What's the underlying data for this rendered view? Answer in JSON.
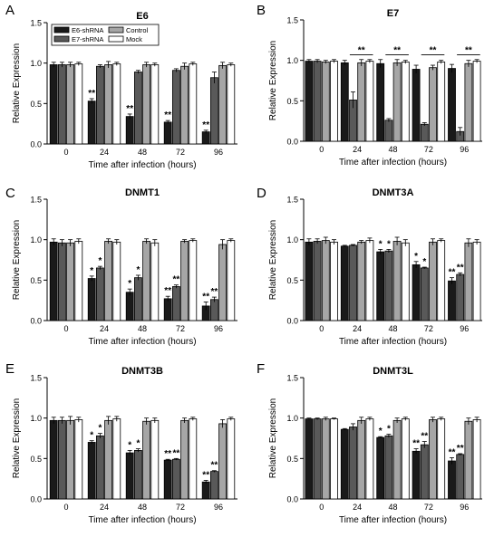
{
  "legend": {
    "entries": [
      {
        "name": "E6-shRNA",
        "color": "#1a1a1a"
      },
      {
        "name": "Control",
        "color": "#a6a6a6"
      },
      {
        "name": "E7-shRNA",
        "color": "#595959"
      },
      {
        "name": "Mock",
        "color": "#ffffff"
      }
    ]
  },
  "chart_data": [
    {
      "type": "bar",
      "panel": "A",
      "title": "E6",
      "xlabel": "Time after infection (hours)",
      "ylabel": "Relative Expression",
      "ylim": [
        0,
        1.5
      ],
      "yticks": [
        "0.0",
        "0.5",
        "1.0",
        "1.5"
      ],
      "categories": [
        "0",
        "24",
        "48",
        "72",
        "96"
      ],
      "series": [
        {
          "name": "E6-shRNA",
          "values": [
            0.98,
            0.53,
            0.34,
            0.27,
            0.15
          ],
          "errors": [
            0.03,
            0.03,
            0.03,
            0.02,
            0.02
          ]
        },
        {
          "name": "E7-shRNA",
          "values": [
            0.98,
            0.96,
            0.89,
            0.91,
            0.82
          ],
          "errors": [
            0.03,
            0.02,
            0.02,
            0.02,
            0.07
          ]
        },
        {
          "name": "Control",
          "values": [
            0.98,
            0.98,
            0.98,
            0.96,
            0.97
          ],
          "errors": [
            0.03,
            0.04,
            0.03,
            0.04,
            0.04
          ]
        },
        {
          "name": "Mock",
          "values": [
            0.99,
            0.99,
            0.98,
            0.99,
            0.98
          ],
          "errors": [
            0.02,
            0.02,
            0.02,
            0.02,
            0.02
          ]
        }
      ],
      "annotations": [
        {
          "category": 1,
          "series": 0,
          "text": "**"
        },
        {
          "category": 2,
          "series": 0,
          "text": "**"
        },
        {
          "category": 3,
          "series": 0,
          "text": "**"
        },
        {
          "category": 4,
          "series": 0,
          "text": "**"
        }
      ],
      "brackets": []
    },
    {
      "type": "bar",
      "panel": "B",
      "title": "E7",
      "xlabel": "Time after infection (hours)",
      "ylabel": "Relative Expression",
      "ylim": [
        0,
        1.5
      ],
      "yticks": [
        "0.0",
        "0.5",
        "1.0",
        "1.5"
      ],
      "categories": [
        "0",
        "24",
        "48",
        "72",
        "96"
      ],
      "series": [
        {
          "name": "E6-shRNA",
          "values": [
            0.99,
            0.97,
            0.96,
            0.89,
            0.9
          ],
          "errors": [
            0.02,
            0.03,
            0.05,
            0.05,
            0.05
          ]
        },
        {
          "name": "E7-shRNA",
          "values": [
            0.99,
            0.51,
            0.26,
            0.21,
            0.12
          ],
          "errors": [
            0.02,
            0.1,
            0.02,
            0.02,
            0.05
          ]
        },
        {
          "name": "Control",
          "values": [
            0.98,
            0.97,
            0.97,
            0.91,
            0.96
          ],
          "errors": [
            0.02,
            0.04,
            0.04,
            0.03,
            0.04
          ]
        },
        {
          "name": "Mock",
          "values": [
            0.99,
            0.99,
            0.98,
            0.98,
            0.99
          ],
          "errors": [
            0.02,
            0.02,
            0.02,
            0.02,
            0.02
          ]
        }
      ],
      "annotations": [],
      "brackets": [
        {
          "category": 1,
          "from": 1,
          "to": 3,
          "y": 1.07,
          "text": "**"
        },
        {
          "category": 2,
          "from": 1,
          "to": 3,
          "y": 1.07,
          "text": "**"
        },
        {
          "category": 3,
          "from": 1,
          "to": 3,
          "y": 1.07,
          "text": "**"
        },
        {
          "category": 4,
          "from": 1,
          "to": 3,
          "y": 1.07,
          "text": "**"
        }
      ]
    },
    {
      "type": "bar",
      "panel": "C",
      "title": "DNMT1",
      "xlabel": "Time after infection (hours)",
      "ylabel": "Relative Expression",
      "ylim": [
        0,
        1.5
      ],
      "yticks": [
        "0.0",
        "0.5",
        "1.0",
        "1.5"
      ],
      "categories": [
        "0",
        "24",
        "48",
        "72",
        "96"
      ],
      "series": [
        {
          "name": "E6-shRNA",
          "values": [
            0.97,
            0.52,
            0.35,
            0.27,
            0.18
          ],
          "errors": [
            0.04,
            0.03,
            0.04,
            0.03,
            0.05
          ]
        },
        {
          "name": "E7-shRNA",
          "values": [
            0.96,
            0.65,
            0.53,
            0.42,
            0.26
          ],
          "errors": [
            0.04,
            0.02,
            0.03,
            0.02,
            0.03
          ]
        },
        {
          "name": "Control",
          "values": [
            0.96,
            0.98,
            0.98,
            0.98,
            0.94
          ],
          "errors": [
            0.04,
            0.03,
            0.03,
            0.02,
            0.06
          ]
        },
        {
          "name": "Mock",
          "values": [
            0.98,
            0.97,
            0.96,
            0.99,
            0.99
          ],
          "errors": [
            0.03,
            0.03,
            0.04,
            0.02,
            0.02
          ]
        }
      ],
      "annotations": [
        {
          "category": 1,
          "series": 0,
          "text": "*"
        },
        {
          "category": 1,
          "series": 1,
          "text": "*"
        },
        {
          "category": 2,
          "series": 0,
          "text": "*"
        },
        {
          "category": 2,
          "series": 1,
          "text": "*"
        },
        {
          "category": 3,
          "series": 0,
          "text": "**"
        },
        {
          "category": 3,
          "series": 1,
          "text": "**"
        },
        {
          "category": 4,
          "series": 0,
          "text": "**"
        },
        {
          "category": 4,
          "series": 1,
          "text": "**"
        }
      ],
      "brackets": []
    },
    {
      "type": "bar",
      "panel": "D",
      "title": "DNMT3A",
      "xlabel": "Time after infection (hours)",
      "ylabel": "Relative Expression",
      "ylim": [
        0,
        1.5
      ],
      "yticks": [
        "0.0",
        "0.5",
        "1.0",
        "1.5"
      ],
      "categories": [
        "0",
        "24",
        "48",
        "72",
        "96"
      ],
      "series": [
        {
          "name": "E6-shRNA",
          "values": [
            0.97,
            0.92,
            0.85,
            0.69,
            0.49
          ],
          "errors": [
            0.04,
            0.01,
            0.03,
            0.04,
            0.04
          ]
        },
        {
          "name": "E7-shRNA",
          "values": [
            0.98,
            0.93,
            0.86,
            0.65,
            0.57
          ],
          "errors": [
            0.03,
            0.01,
            0.02,
            0.01,
            0.02
          ]
        },
        {
          "name": "Control",
          "values": [
            0.99,
            0.97,
            0.98,
            0.97,
            0.96
          ],
          "errors": [
            0.04,
            0.02,
            0.05,
            0.04,
            0.05
          ]
        },
        {
          "name": "Mock",
          "values": [
            0.97,
            0.99,
            0.96,
            0.99,
            0.97
          ],
          "errors": [
            0.03,
            0.03,
            0.04,
            0.02,
            0.03
          ]
        }
      ],
      "annotations": [
        {
          "category": 2,
          "series": 0,
          "text": "*"
        },
        {
          "category": 2,
          "series": 1,
          "text": "*"
        },
        {
          "category": 3,
          "series": 0,
          "text": "*"
        },
        {
          "category": 3,
          "series": 1,
          "text": "*"
        },
        {
          "category": 4,
          "series": 0,
          "text": "**"
        },
        {
          "category": 4,
          "series": 1,
          "text": "**"
        }
      ],
      "brackets": []
    },
    {
      "type": "bar",
      "panel": "E",
      "title": "DNMT3B",
      "xlabel": "Time after infection (hours)",
      "ylabel": "Relative Expression",
      "ylim": [
        0,
        1.5
      ],
      "yticks": [
        "0.0",
        "0.5",
        "1.0",
        "1.5"
      ],
      "categories": [
        "0",
        "24",
        "48",
        "72",
        "96"
      ],
      "series": [
        {
          "name": "E6-shRNA",
          "values": [
            0.97,
            0.7,
            0.57,
            0.48,
            0.21
          ],
          "errors": [
            0.04,
            0.02,
            0.03,
            0.01,
            0.02
          ]
        },
        {
          "name": "E7-shRNA",
          "values": [
            0.97,
            0.78,
            0.6,
            0.49,
            0.34
          ],
          "errors": [
            0.04,
            0.03,
            0.02,
            0.01,
            0.01
          ]
        },
        {
          "name": "Control",
          "values": [
            0.97,
            0.97,
            0.96,
            0.97,
            0.93
          ],
          "errors": [
            0.05,
            0.05,
            0.04,
            0.03,
            0.05
          ]
        },
        {
          "name": "Mock",
          "values": [
            0.98,
            0.99,
            0.97,
            0.99,
            0.99
          ],
          "errors": [
            0.03,
            0.03,
            0.03,
            0.02,
            0.02
          ]
        }
      ],
      "annotations": [
        {
          "category": 1,
          "series": 0,
          "text": "*"
        },
        {
          "category": 1,
          "series": 1,
          "text": "*"
        },
        {
          "category": 2,
          "series": 0,
          "text": "*"
        },
        {
          "category": 2,
          "series": 1,
          "text": "*"
        },
        {
          "category": 3,
          "series": 0,
          "text": "**"
        },
        {
          "category": 3,
          "series": 1,
          "text": "**"
        },
        {
          "category": 4,
          "series": 0,
          "text": "**"
        },
        {
          "category": 4,
          "series": 1,
          "text": "**"
        }
      ],
      "brackets": []
    },
    {
      "type": "bar",
      "panel": "F",
      "title": "DNMT3L",
      "xlabel": "Time after infection (hours)",
      "ylabel": "Relative Expression",
      "ylim": [
        0,
        1.5
      ],
      "yticks": [
        "0.0",
        "0.5",
        "1.0",
        "1.5"
      ],
      "categories": [
        "0",
        "24",
        "48",
        "72",
        "96"
      ],
      "series": [
        {
          "name": "E6-shRNA",
          "values": [
            0.99,
            0.86,
            0.76,
            0.59,
            0.47
          ],
          "errors": [
            0.01,
            0.01,
            0.01,
            0.03,
            0.04
          ]
        },
        {
          "name": "E7-shRNA",
          "values": [
            0.99,
            0.89,
            0.78,
            0.67,
            0.55
          ],
          "errors": [
            0.01,
            0.04,
            0.02,
            0.04,
            0.01
          ]
        },
        {
          "name": "Control",
          "values": [
            0.99,
            0.97,
            0.97,
            0.98,
            0.96
          ],
          "errors": [
            0.02,
            0.04,
            0.03,
            0.03,
            0.04
          ]
        },
        {
          "name": "Mock",
          "values": [
            0.99,
            0.99,
            0.99,
            0.99,
            0.98
          ],
          "errors": [
            0.01,
            0.02,
            0.02,
            0.02,
            0.03
          ]
        }
      ],
      "annotations": [
        {
          "category": 2,
          "series": 0,
          "text": "*"
        },
        {
          "category": 2,
          "series": 1,
          "text": "*"
        },
        {
          "category": 3,
          "series": 0,
          "text": "**"
        },
        {
          "category": 3,
          "series": 1,
          "text": "**"
        },
        {
          "category": 4,
          "series": 0,
          "text": "**"
        },
        {
          "category": 4,
          "series": 1,
          "text": "**"
        }
      ],
      "brackets": []
    }
  ]
}
